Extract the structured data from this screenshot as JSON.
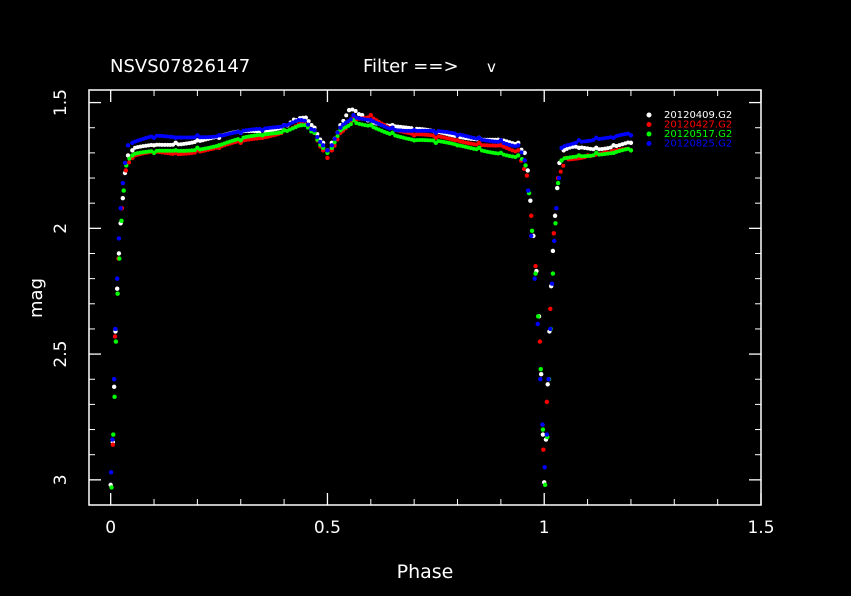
{
  "header": {
    "object_name": "NSVS07826147",
    "filter_label": "Filter ==>",
    "filter_value": "v"
  },
  "colors": {
    "background": "#000000",
    "axes": "#ffffff"
  },
  "chart_data": {
    "type": "scatter",
    "title": "NSVS07826147",
    "xlabel": "Phase",
    "ylabel": "mag",
    "xlim": [
      -0.05,
      1.5
    ],
    "ylim": [
      3.1,
      1.45
    ],
    "y_inverted": true,
    "xticks": [
      0,
      0.5,
      1,
      1.5
    ],
    "xtick_labels": [
      "0",
      "0.5",
      "1",
      "1.5"
    ],
    "yticks": [
      1.5,
      2,
      2.5,
      3
    ],
    "ytick_labels": [
      "1.5",
      "2",
      "2.5",
      "3"
    ],
    "grid": false,
    "legend_position": "top-right",
    "series": [
      {
        "name": "20120409.G2",
        "color": "#ffffff",
        "offset": 0.0,
        "points": [
          [
            0.0,
            3.02
          ],
          [
            0.005,
            2.85
          ],
          [
            0.008,
            2.63
          ],
          [
            0.011,
            2.41
          ],
          [
            0.015,
            2.24
          ],
          [
            0.019,
            2.1
          ],
          [
            0.023,
            1.98
          ],
          [
            0.028,
            1.88
          ],
          [
            0.033,
            1.78
          ],
          [
            0.04,
            1.71
          ],
          [
            0.05,
            1.69
          ],
          [
            0.1,
            1.67
          ],
          [
            0.15,
            1.66
          ],
          [
            0.2,
            1.65
          ],
          [
            0.25,
            1.64
          ],
          [
            0.3,
            1.62
          ],
          [
            0.35,
            1.61
          ],
          [
            0.4,
            1.59
          ],
          [
            0.43,
            1.57
          ],
          [
            0.45,
            1.56
          ],
          [
            0.47,
            1.6
          ],
          [
            0.49,
            1.66
          ],
          [
            0.5,
            1.69
          ],
          [
            0.51,
            1.66
          ],
          [
            0.53,
            1.59
          ],
          [
            0.55,
            1.53
          ],
          [
            0.58,
            1.55
          ],
          [
            0.6,
            1.57
          ],
          [
            0.65,
            1.59
          ],
          [
            0.7,
            1.61
          ],
          [
            0.75,
            1.62
          ],
          [
            0.8,
            1.63
          ],
          [
            0.85,
            1.64
          ],
          [
            0.9,
            1.65
          ],
          [
            0.94,
            1.66
          ],
          [
            0.955,
            1.7
          ],
          [
            0.962,
            1.77
          ],
          [
            0.968,
            1.89
          ],
          [
            0.975,
            2.03
          ],
          [
            0.982,
            2.17
          ],
          [
            0.988,
            2.35
          ],
          [
            0.993,
            2.58
          ],
          [
            0.997,
            2.82
          ],
          [
            1.0,
            3.01
          ],
          [
            1.004,
            2.84
          ],
          [
            1.008,
            2.62
          ],
          [
            1.012,
            2.41
          ],
          [
            1.016,
            2.23
          ],
          [
            1.02,
            2.09
          ],
          [
            1.025,
            1.95
          ],
          [
            1.03,
            1.84
          ],
          [
            1.035,
            1.74
          ],
          [
            1.045,
            1.69
          ],
          [
            1.08,
            1.68
          ],
          [
            1.12,
            1.68
          ],
          [
            1.16,
            1.67
          ],
          [
            1.2,
            1.66
          ]
        ]
      },
      {
        "name": "20120427.G2",
        "color": "#ff0000",
        "offset": 0.02,
        "points": [
          [
            0.005,
            2.86
          ],
          [
            0.01,
            2.43
          ],
          [
            0.018,
            2.12
          ],
          [
            0.026,
            1.92
          ],
          [
            0.035,
            1.77
          ],
          [
            0.05,
            1.72
          ],
          [
            0.1,
            1.7
          ],
          [
            0.15,
            1.7
          ],
          [
            0.2,
            1.69
          ],
          [
            0.25,
            1.68
          ],
          [
            0.3,
            1.66
          ],
          [
            0.35,
            1.64
          ],
          [
            0.4,
            1.61
          ],
          [
            0.44,
            1.58
          ],
          [
            0.47,
            1.62
          ],
          [
            0.49,
            1.69
          ],
          [
            0.5,
            1.72
          ],
          [
            0.51,
            1.69
          ],
          [
            0.53,
            1.62
          ],
          [
            0.56,
            1.56
          ],
          [
            0.6,
            1.55
          ],
          [
            0.65,
            1.6
          ],
          [
            0.7,
            1.63
          ],
          [
            0.75,
            1.64
          ],
          [
            0.8,
            1.65
          ],
          [
            0.85,
            1.66
          ],
          [
            0.9,
            1.67
          ],
          [
            0.94,
            1.69
          ],
          [
            0.96,
            1.79
          ],
          [
            0.97,
            1.95
          ],
          [
            0.98,
            2.15
          ],
          [
            0.99,
            2.45
          ],
          [
            0.998,
            2.88
          ],
          [
            1.006,
            2.69
          ],
          [
            1.014,
            2.32
          ],
          [
            1.022,
            2.02
          ],
          [
            1.032,
            1.8
          ],
          [
            1.05,
            1.72
          ],
          [
            1.1,
            1.71
          ],
          [
            1.15,
            1.7
          ],
          [
            1.2,
            1.69
          ]
        ]
      },
      {
        "name": "20120517.G2",
        "color": "#00ff00",
        "offset": 0.04,
        "points": [
          [
            0.002,
            3.03
          ],
          [
            0.006,
            2.82
          ],
          [
            0.009,
            2.67
          ],
          [
            0.012,
            2.45
          ],
          [
            0.016,
            2.26
          ],
          [
            0.02,
            2.12
          ],
          [
            0.025,
            1.97
          ],
          [
            0.03,
            1.85
          ],
          [
            0.036,
            1.75
          ],
          [
            0.05,
            1.71
          ],
          [
            0.1,
            1.7
          ],
          [
            0.15,
            1.69
          ],
          [
            0.2,
            1.68
          ],
          [
            0.25,
            1.67
          ],
          [
            0.3,
            1.65
          ],
          [
            0.35,
            1.63
          ],
          [
            0.4,
            1.61
          ],
          [
            0.44,
            1.59
          ],
          [
            0.47,
            1.62
          ],
          [
            0.49,
            1.68
          ],
          [
            0.5,
            1.7
          ],
          [
            0.51,
            1.68
          ],
          [
            0.53,
            1.61
          ],
          [
            0.56,
            1.57
          ],
          [
            0.6,
            1.59
          ],
          [
            0.65,
            1.62
          ],
          [
            0.7,
            1.65
          ],
          [
            0.75,
            1.66
          ],
          [
            0.8,
            1.67
          ],
          [
            0.85,
            1.68
          ],
          [
            0.9,
            1.7
          ],
          [
            0.94,
            1.71
          ],
          [
            0.957,
            1.75
          ],
          [
            0.965,
            1.86
          ],
          [
            0.972,
            2.01
          ],
          [
            0.98,
            2.18
          ],
          [
            0.986,
            2.35
          ],
          [
            0.992,
            2.56
          ],
          [
            0.997,
            2.8
          ],
          [
            1.002,
            3.02
          ],
          [
            1.007,
            2.83
          ],
          [
            1.011,
            2.6
          ],
          [
            1.015,
            2.4
          ],
          [
            1.02,
            2.18
          ],
          [
            1.026,
            1.98
          ],
          [
            1.032,
            1.82
          ],
          [
            1.04,
            1.73
          ],
          [
            1.08,
            1.71
          ],
          [
            1.12,
            1.7
          ],
          [
            1.16,
            1.7
          ],
          [
            1.2,
            1.69
          ]
        ]
      },
      {
        "name": "20120825.G2",
        "color": "#0000ff",
        "offset": -0.015,
        "points": [
          [
            0.001,
            2.97
          ],
          [
            0.004,
            2.84
          ],
          [
            0.008,
            2.6
          ],
          [
            0.011,
            2.4
          ],
          [
            0.015,
            2.2
          ],
          [
            0.019,
            2.04
          ],
          [
            0.023,
            1.92
          ],
          [
            0.028,
            1.82
          ],
          [
            0.033,
            1.74
          ],
          [
            0.04,
            1.67
          ],
          [
            0.05,
            1.66
          ],
          [
            0.1,
            1.64
          ],
          [
            0.15,
            1.64
          ],
          [
            0.2,
            1.63
          ],
          [
            0.25,
            1.63
          ],
          [
            0.3,
            1.62
          ],
          [
            0.35,
            1.61
          ],
          [
            0.4,
            1.59
          ],
          [
            0.44,
            1.57
          ],
          [
            0.47,
            1.61
          ],
          [
            0.49,
            1.67
          ],
          [
            0.5,
            1.69
          ],
          [
            0.51,
            1.67
          ],
          [
            0.53,
            1.6
          ],
          [
            0.56,
            1.55
          ],
          [
            0.6,
            1.57
          ],
          [
            0.65,
            1.6
          ],
          [
            0.7,
            1.61
          ],
          [
            0.75,
            1.62
          ],
          [
            0.8,
            1.63
          ],
          [
            0.85,
            1.64
          ],
          [
            0.9,
            1.65
          ],
          [
            0.94,
            1.67
          ],
          [
            0.955,
            1.73
          ],
          [
            0.963,
            1.85
          ],
          [
            0.97,
            2.03
          ],
          [
            0.978,
            2.2
          ],
          [
            0.985,
            2.38
          ],
          [
            0.991,
            2.6
          ],
          [
            0.996,
            2.78
          ],
          [
            1.001,
            2.95
          ],
          [
            1.006,
            2.82
          ],
          [
            1.01,
            2.6
          ],
          [
            1.014,
            2.4
          ],
          [
            1.018,
            2.22
          ],
          [
            1.023,
            2.05
          ],
          [
            1.028,
            1.92
          ],
          [
            1.034,
            1.8
          ],
          [
            1.04,
            1.68
          ],
          [
            1.08,
            1.65
          ],
          [
            1.12,
            1.64
          ],
          [
            1.16,
            1.64
          ],
          [
            1.2,
            1.63
          ]
        ]
      }
    ]
  }
}
